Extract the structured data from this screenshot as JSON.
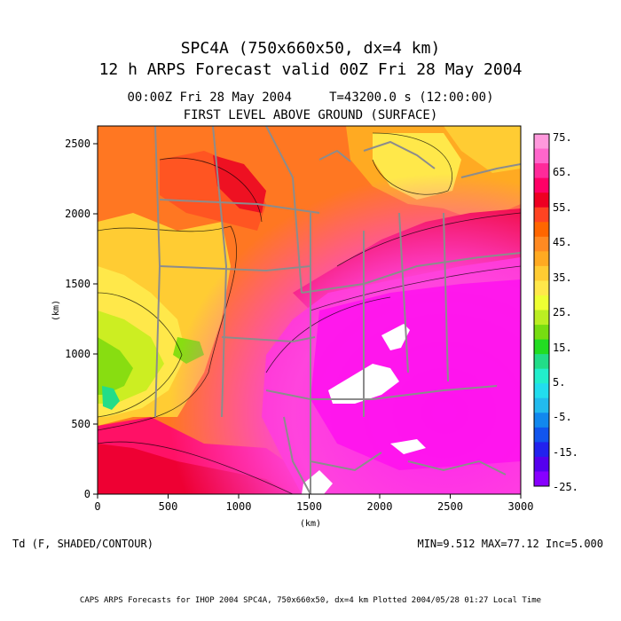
{
  "header": {
    "title_line1": "SPC4A (750x660x50, dx=4 km)",
    "title_line2": "12 h ARPS Forecast valid 00Z Fri 28 May 2004",
    "valid_time": "00:00Z Fri 28 May 2004",
    "model_time": "T=43200.0 s (12:00:00)",
    "level": "FIRST LEVEL ABOVE GROUND (SURFACE)"
  },
  "axes": {
    "x_ticks": [
      "0",
      "500",
      "1000",
      "1500",
      "2000",
      "2500",
      "3000"
    ],
    "y_ticks": [
      "0",
      "500",
      "1000",
      "1500",
      "2000",
      "2500"
    ],
    "x_label": "(km)",
    "y_label": "(km)"
  },
  "colorbar": {
    "labels": [
      "75.",
      "65.",
      "55.",
      "45.",
      "35.",
      "25.",
      "15.",
      "5.",
      "-5.",
      "-15.",
      "-25."
    ],
    "colors": [
      "#ff99dd",
      "#ff66cc",
      "#ff2a9a",
      "#ff0066",
      "#ee0022",
      "#ff4422",
      "#ff6600",
      "#ff8a22",
      "#ffaa22",
      "#ffcc33",
      "#ffe84a",
      "#eeff33",
      "#bbee22",
      "#77dd11",
      "#22dd22",
      "#22dd88",
      "#22eecc",
      "#22ddee",
      "#22bbee",
      "#1188ee",
      "#1155ee",
      "#2222ee",
      "#5500ee",
      "#8800ff"
    ]
  },
  "footer": {
    "variable": "Td (F, SHADED/CONTOUR)",
    "stats": "MIN=9.512 MAX=77.12 Inc=5.000",
    "credit": "CAPS ARPS Forecasts for IHOP 2004  SPC4A, 750x660x50, dx=4 km  Plotted 2004/05/28 01:27 Local Time"
  }
}
